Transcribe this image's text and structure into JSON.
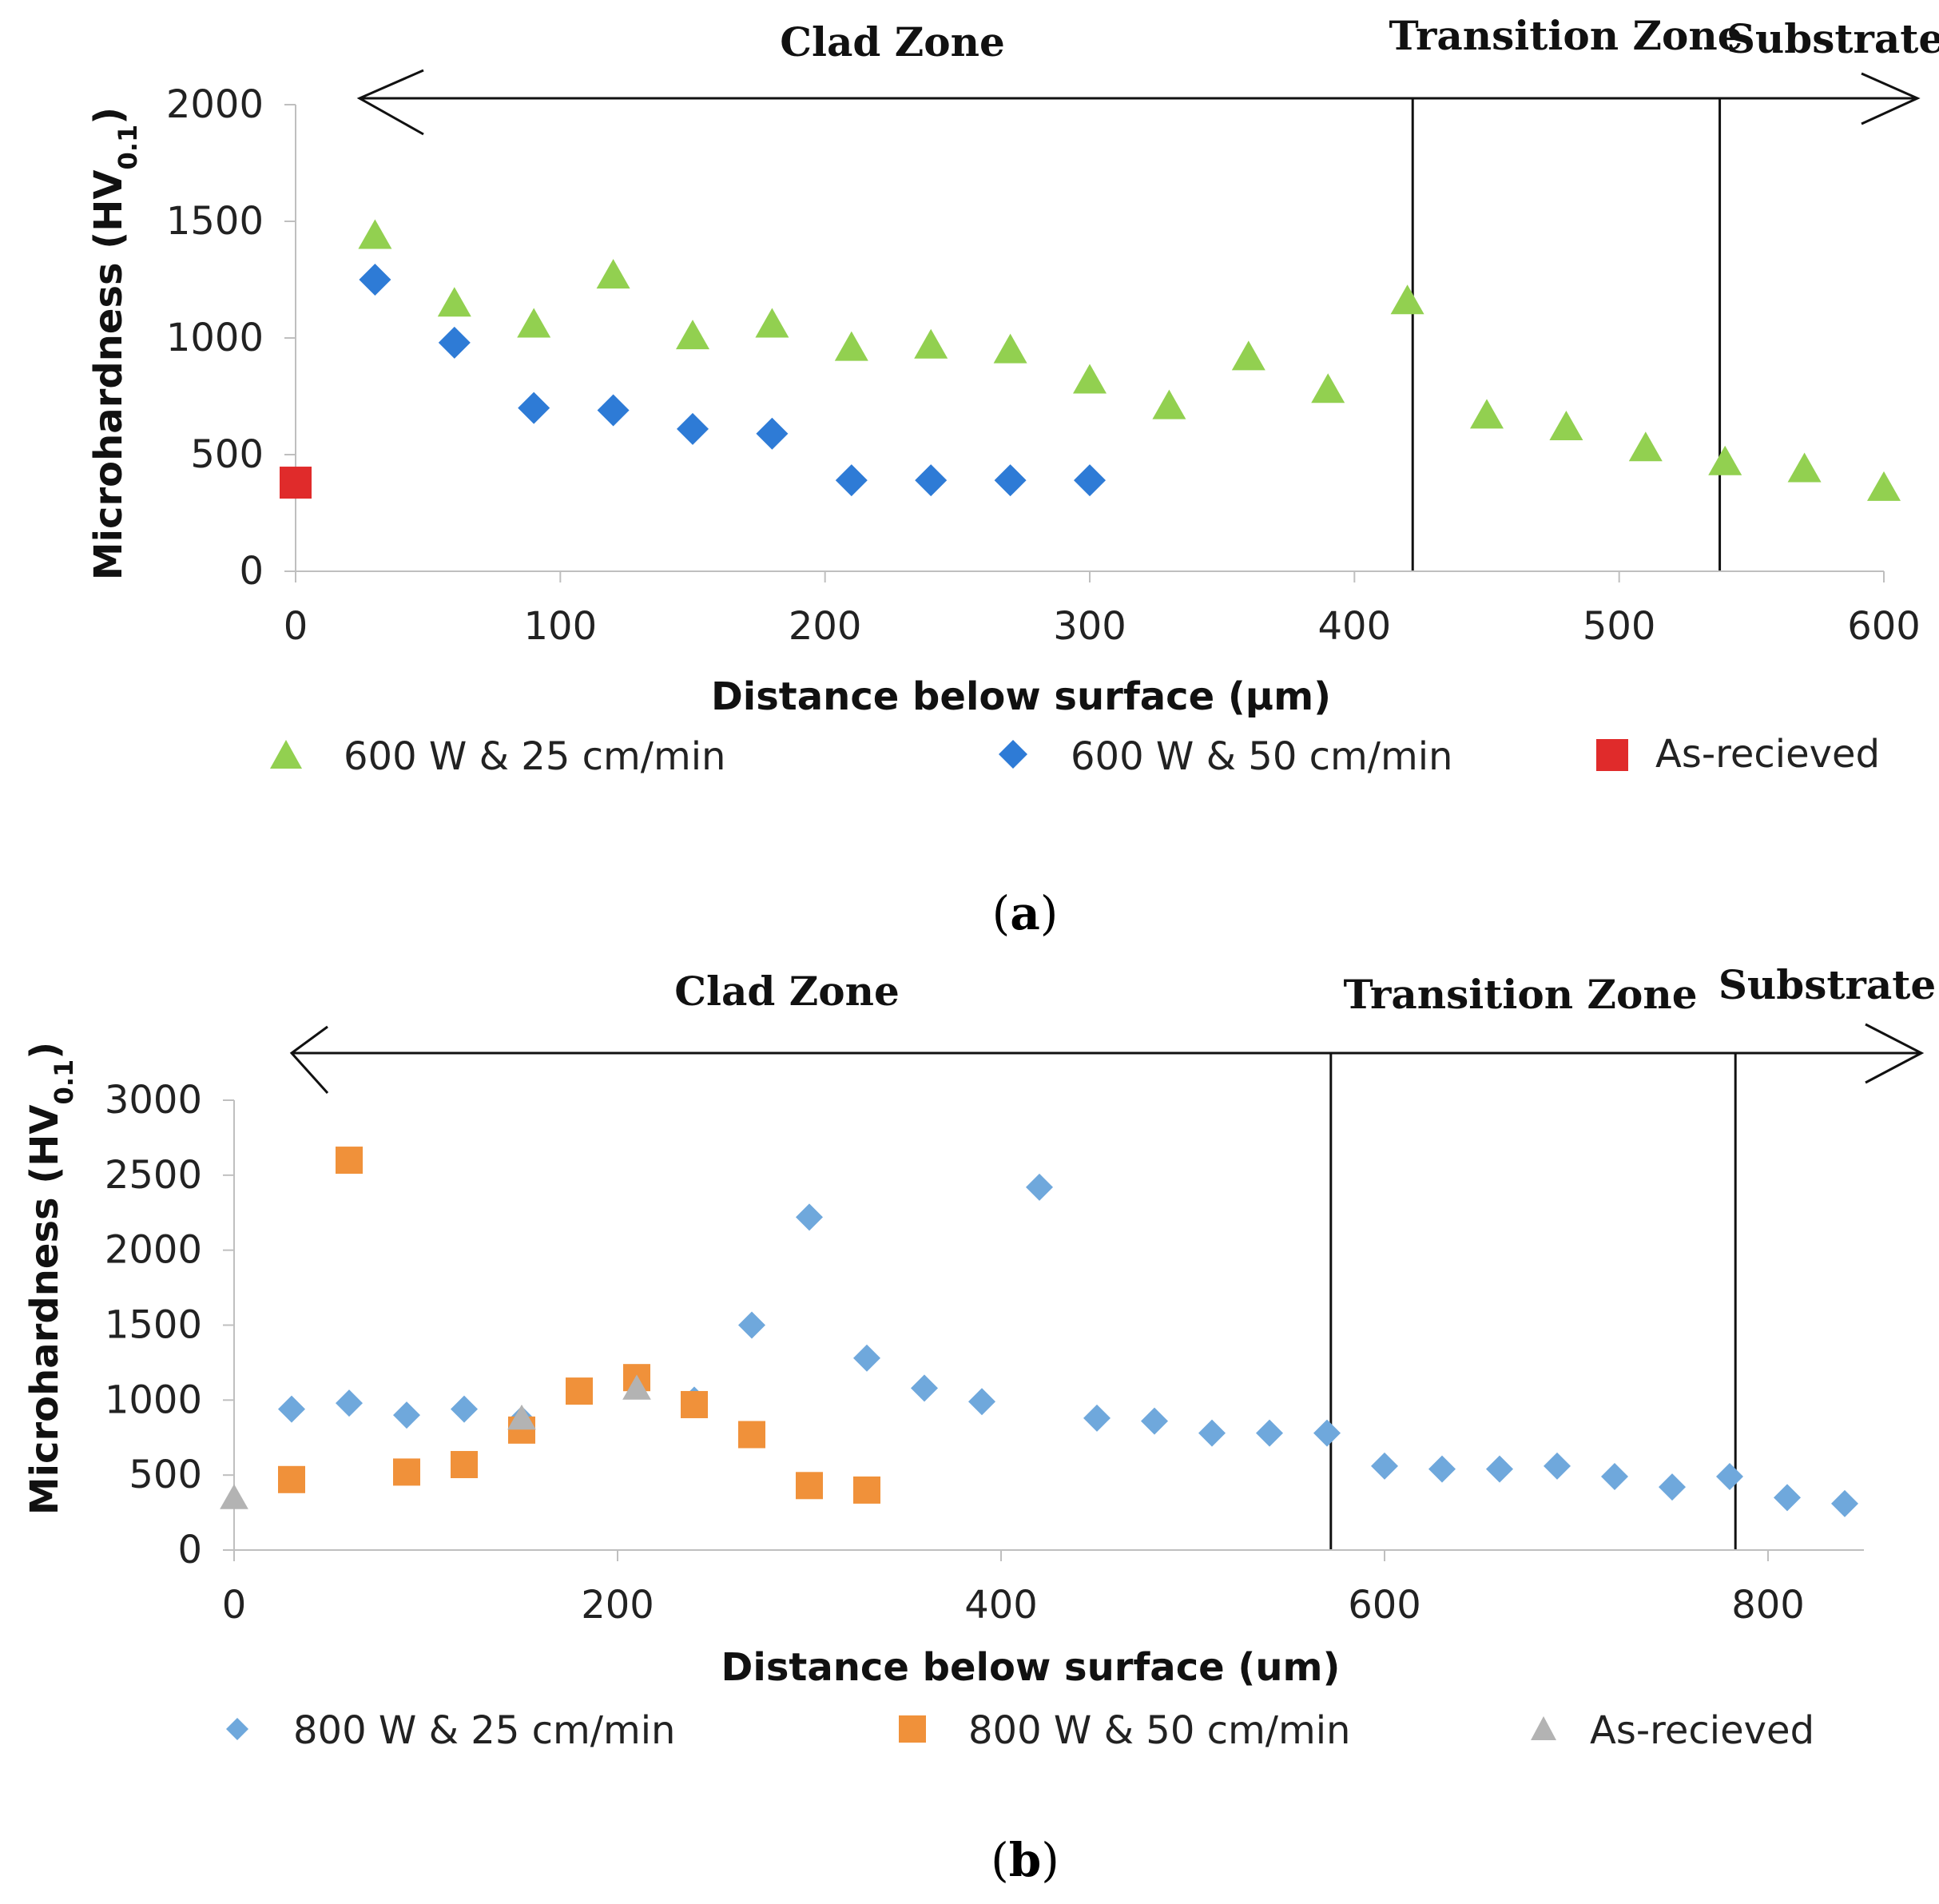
{
  "chart_data": [
    {
      "type": "scatter",
      "panel_label": "a",
      "zones": [
        "Clad Zone",
        "Transition Zone",
        "Substrate"
      ],
      "zone_boundaries": [
        422,
        538
      ],
      "xlabel": "Distance below surface (µm)",
      "ylabel": "Microhardness (HV",
      "ylabel_sub": "0.1",
      "ylabel_close": ")",
      "xlim": [
        0,
        600
      ],
      "ylim": [
        0,
        2000
      ],
      "xticks": [
        0,
        100,
        200,
        300,
        400,
        500,
        600
      ],
      "yticks": [
        0,
        500,
        1000,
        1500,
        2000
      ],
      "series": [
        {
          "name": "600 W & 25 cm/min",
          "marker": "triangle",
          "color": "#92D050",
          "x": [
            30,
            60,
            90,
            120,
            150,
            180,
            210,
            240,
            270,
            300,
            330,
            360,
            390,
            420,
            450,
            480,
            510,
            540,
            570,
            600
          ],
          "y": [
            1440,
            1150,
            1060,
            1270,
            1010,
            1060,
            960,
            970,
            950,
            820,
            710,
            920,
            780,
            1160,
            670,
            620,
            530,
            470,
            440,
            360
          ]
        },
        {
          "name": "600 W & 50 cm/min",
          "marker": "diamond",
          "color": "#2E7BD6",
          "x": [
            30,
            60,
            90,
            120,
            150,
            180,
            210,
            240,
            270,
            300
          ],
          "y": [
            1250,
            980,
            700,
            690,
            610,
            590,
            390,
            390,
            390,
            390
          ]
        },
        {
          "name": "As-recieved",
          "marker": "square",
          "color": "#E02B2B",
          "x": [
            0
          ],
          "y": [
            380
          ]
        }
      ]
    },
    {
      "type": "scatter",
      "panel_label": "b",
      "zones": [
        "Clad Zone",
        "Transition Zone",
        "Substrate"
      ],
      "zone_boundaries": [
        572,
        783
      ],
      "xlabel": "Distance below surface (um)",
      "ylabel": "Microhardness (HV",
      "ylabel_sub": "0.1",
      "ylabel_close": ")",
      "xlim": [
        0,
        850
      ],
      "ylim": [
        0,
        3000
      ],
      "xticks": [
        0,
        200,
        400,
        600,
        800
      ],
      "yticks": [
        0,
        500,
        1000,
        1500,
        2000,
        2500,
        3000
      ],
      "series": [
        {
          "name": "800 W & 25 cm/min",
          "marker": "diamond",
          "color": "#6FA8DC",
          "x": [
            30,
            60,
            90,
            120,
            150,
            180,
            210,
            240,
            270,
            300,
            330,
            360,
            390,
            420,
            450,
            480,
            510,
            540,
            570,
            600,
            630,
            660,
            690,
            720,
            750,
            780,
            810,
            840
          ],
          "y": [
            940,
            980,
            900,
            940,
            870,
            1060,
            1100,
            1000,
            1500,
            2220,
            1280,
            1080,
            990,
            2420,
            880,
            860,
            780,
            780,
            780,
            560,
            540,
            540,
            560,
            490,
            420,
            490,
            350,
            310
          ]
        },
        {
          "name": "800 W & 50 cm/min",
          "marker": "square",
          "color": "#F0913A",
          "x": [
            30,
            60,
            90,
            120,
            150,
            180,
            210,
            240,
            270,
            300,
            330
          ],
          "y": [
            470,
            2600,
            520,
            570,
            800,
            1060,
            1150,
            970,
            770,
            430,
            400
          ]
        },
        {
          "name": "As-recieved",
          "marker": "triangle",
          "color": "#B3B3B3",
          "x": [
            0,
            150,
            210
          ],
          "y": [
            350,
            880,
            1080
          ]
        }
      ]
    }
  ]
}
